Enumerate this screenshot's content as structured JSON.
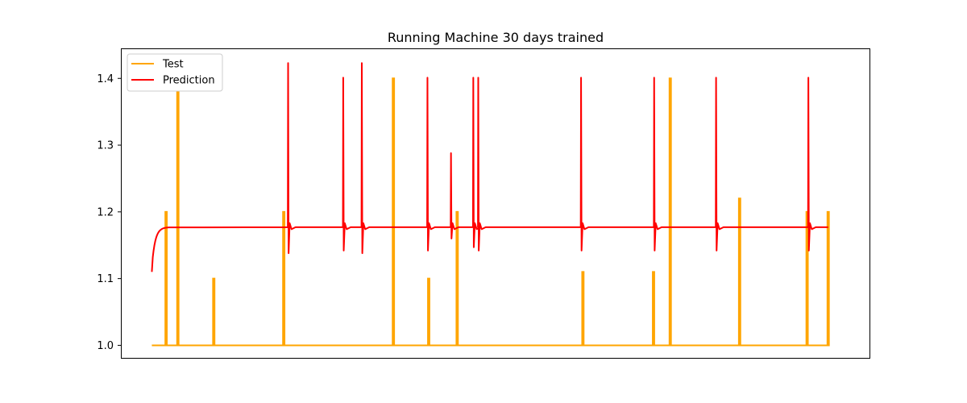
{
  "chart_data": {
    "type": "line",
    "title": "Running Machine 30 days trained",
    "xlabel": "",
    "ylabel": "",
    "x_ticks_shown": false,
    "xlim": [
      -5,
      116
    ],
    "ylim": [
      0.98,
      1.445
    ],
    "yticks": [
      1.0,
      1.1,
      1.2,
      1.3,
      1.4
    ],
    "ytick_labels": [
      "1.0",
      "1.1",
      "1.2",
      "1.3",
      "1.4"
    ],
    "grid": false,
    "legend_position": "top-left",
    "series": [
      {
        "name": "Test",
        "color": "#ffa500",
        "baseline": 1.0,
        "spikes": [
          {
            "x": 2.3,
            "y": 1.2
          },
          {
            "x": 4.2,
            "y": 1.38
          },
          {
            "x": 10.0,
            "y": 1.1
          },
          {
            "x": 21.3,
            "y": 1.2
          },
          {
            "x": 39.0,
            "y": 1.4
          },
          {
            "x": 44.7,
            "y": 1.1
          },
          {
            "x": 49.3,
            "y": 1.2
          },
          {
            "x": 69.6,
            "y": 1.11
          },
          {
            "x": 81.0,
            "y": 1.11
          },
          {
            "x": 83.7,
            "y": 1.4
          },
          {
            "x": 94.9,
            "y": 1.22
          },
          {
            "x": 105.8,
            "y": 1.2
          },
          {
            "x": 109.2,
            "y": 1.2
          }
        ],
        "x_start": 0,
        "x_end": 109.2
      },
      {
        "name": "Prediction",
        "color": "#ff0000",
        "start_value": 1.11,
        "steady_value": 1.177,
        "x_start": 0,
        "x_end": 109.2,
        "spikes": [
          {
            "x": 22.0,
            "peak": 1.423,
            "dip": 1.138
          },
          {
            "x": 30.9,
            "peak": 1.401,
            "dip": 1.142
          },
          {
            "x": 33.9,
            "peak": 1.423,
            "dip": 1.138
          },
          {
            "x": 44.5,
            "peak": 1.401,
            "dip": 1.142
          },
          {
            "x": 48.3,
            "peak": 1.288,
            "dip": 1.16
          },
          {
            "x": 51.9,
            "peak": 1.401,
            "dip": 1.147
          },
          {
            "x": 52.7,
            "peak": 1.401,
            "dip": 1.142
          },
          {
            "x": 69.3,
            "peak": 1.401,
            "dip": 1.142
          },
          {
            "x": 81.1,
            "peak": 1.401,
            "dip": 1.142
          },
          {
            "x": 91.1,
            "peak": 1.401,
            "dip": 1.142
          },
          {
            "x": 106.0,
            "peak": 1.401,
            "dip": 1.142
          }
        ]
      }
    ]
  }
}
